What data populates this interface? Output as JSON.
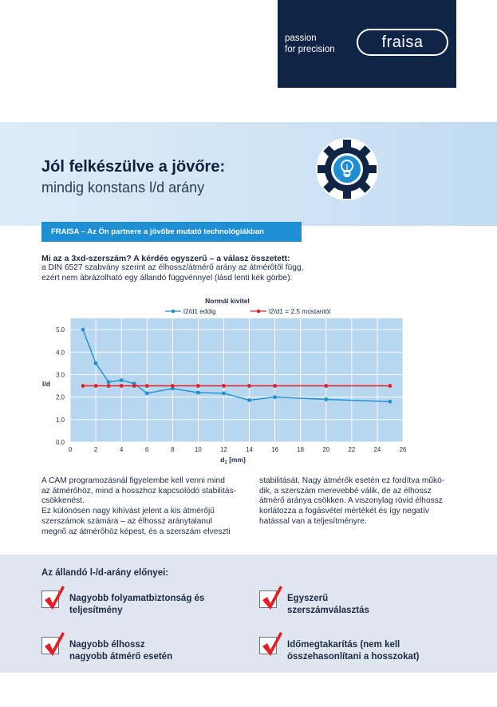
{
  "brand": {
    "tagline_line1": "passion",
    "tagline_line2": "for precision",
    "logo_text": "fraisa",
    "colors": {
      "navy": "#102446",
      "blue": "#1e8fd2",
      "red": "#e31e24"
    }
  },
  "hero": {
    "title": "Jól felkészülve a jövőre:",
    "subtitle": "mindig konstans l/d arány",
    "icon": "gear-lightbulb-icon"
  },
  "banner": {
    "text": "FRAISA – Az Ön partnere a jövőbe mutató technológiákban"
  },
  "intro": {
    "question": "Mi az a 3xd-szerszám? A kérdés egyszerű – a válasz összetett:",
    "line1": "a DIN 6527 szabvány szerint az élhossz/átmérő arány az átmérőtől függ,",
    "line2": "ezért nem ábrázolható egy állandó függvénnyel (lásd lenti kék görbe):"
  },
  "chart_data": {
    "type": "line",
    "title": "Normál kivitel",
    "xlabel": "d",
    "xlabel_sub": "1",
    "xlabel_unit": " [mm]",
    "ylabel": "l/d",
    "xlim": [
      0,
      26
    ],
    "ylim": [
      0,
      5.5
    ],
    "x_ticks": [
      0,
      2,
      4,
      6,
      8,
      10,
      12,
      14,
      16,
      18,
      20,
      22,
      24,
      26
    ],
    "y_ticks": [
      "0.0",
      "1.0",
      "2.0",
      "3.0",
      "4.0",
      "5.0"
    ],
    "y_tick_values": [
      0,
      1,
      2,
      3,
      4,
      5
    ],
    "grid": true,
    "legend_position": "top",
    "series": [
      {
        "name": "l2/d1 eddig",
        "color": "#1e8fd2",
        "x": [
          1,
          2,
          3,
          4,
          5,
          6,
          8,
          10,
          12,
          14,
          16,
          20,
          25
        ],
        "y": [
          5.0,
          3.5,
          2.67,
          2.75,
          2.6,
          2.17,
          2.38,
          2.2,
          2.17,
          1.86,
          2.0,
          1.9,
          1.8
        ]
      },
      {
        "name": "l2/d1 = 2.5 mostantól",
        "color": "#e31e24",
        "x": [
          1,
          2,
          3,
          4,
          5,
          6,
          8,
          10,
          12,
          14,
          16,
          20,
          25
        ],
        "y": [
          2.5,
          2.5,
          2.5,
          2.5,
          2.5,
          2.5,
          2.5,
          2.5,
          2.5,
          2.5,
          2.5,
          2.5,
          2.5
        ]
      }
    ]
  },
  "body_left": [
    "A CAM programozásnál figyelembe kell venni mind",
    "az átmérőhöz, mind a hosszhoz kapcsolódó stabilitás-",
    "csökkenést.",
    "Ez különösen nagy kihívást jelent a kis átmérőjű",
    "szerszámok számára – az élhossz aránytalanul",
    "megnő az átmérőhöz képest, és a szerszám elveszti"
  ],
  "body_right": [
    "stabilitását. Nagy átmérők esetén ez fordítva műkö-",
    "dik, a szerszám merevebbé válik, de az élhossz",
    "átmérő aránya csökken. A viszonylag rövid élhossz",
    "korlátozza a fogásvétel mértékét és így negatív",
    "hatással van a teljesítményre."
  ],
  "benefits": {
    "title": "Az állandó l-/d-arány előnyei:",
    "items": [
      {
        "line1": "Nagyobb folyamatbiztonság és",
        "line2": "teljesítmény"
      },
      {
        "line1": "Egyszerű",
        "line2": "szerszámválasztás"
      },
      {
        "line1": "Nagyobb élhossz",
        "line2": "nagyobb átmérő esetén"
      },
      {
        "line1": "Időmegtakarítás (nem kell",
        "line2": "összehasonlítani a hosszokat)"
      }
    ]
  }
}
